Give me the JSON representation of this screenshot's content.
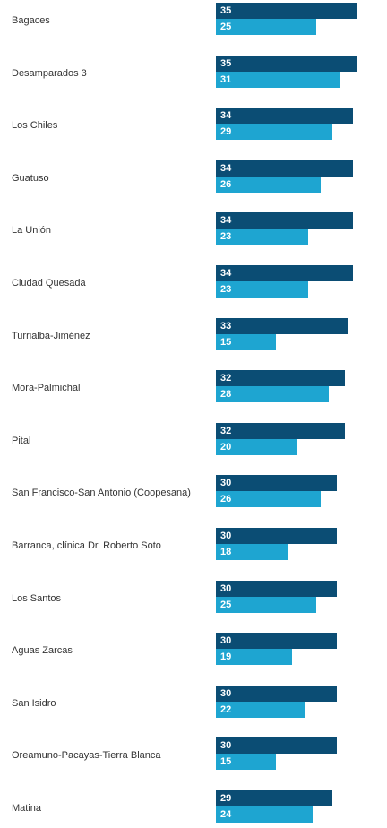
{
  "chart_data": {
    "type": "bar",
    "orientation": "horizontal",
    "title": "",
    "xlabel": "",
    "ylabel": "",
    "legend": "none",
    "grid": false,
    "categories": [
      "Bagaces",
      "Desamparados 3",
      "Los Chiles",
      "Guatuso",
      "La Unión",
      "Ciudad Quesada",
      "Turrialba-Jiménez",
      "Mora-Palmichal",
      "Pital",
      "San Francisco-San Antonio (Coopesana)",
      "Barranca, clínica Dr. Roberto Soto",
      "Los Santos",
      "Aguas Zarcas",
      "San Isidro",
      "Oreamuno-Pacayas-Tierra Blanca",
      "Matina"
    ],
    "series": [
      {
        "values": [
          35,
          35,
          34,
          34,
          34,
          34,
          33,
          32,
          32,
          30,
          30,
          30,
          30,
          30,
          30,
          29
        ],
        "color": "#0b4d74"
      },
      {
        "values": [
          25,
          31,
          29,
          26,
          23,
          23,
          15,
          28,
          20,
          26,
          18,
          25,
          19,
          22,
          15,
          24
        ],
        "color": "#1ea5d1"
      }
    ],
    "xlim": [
      0,
      35
    ]
  }
}
